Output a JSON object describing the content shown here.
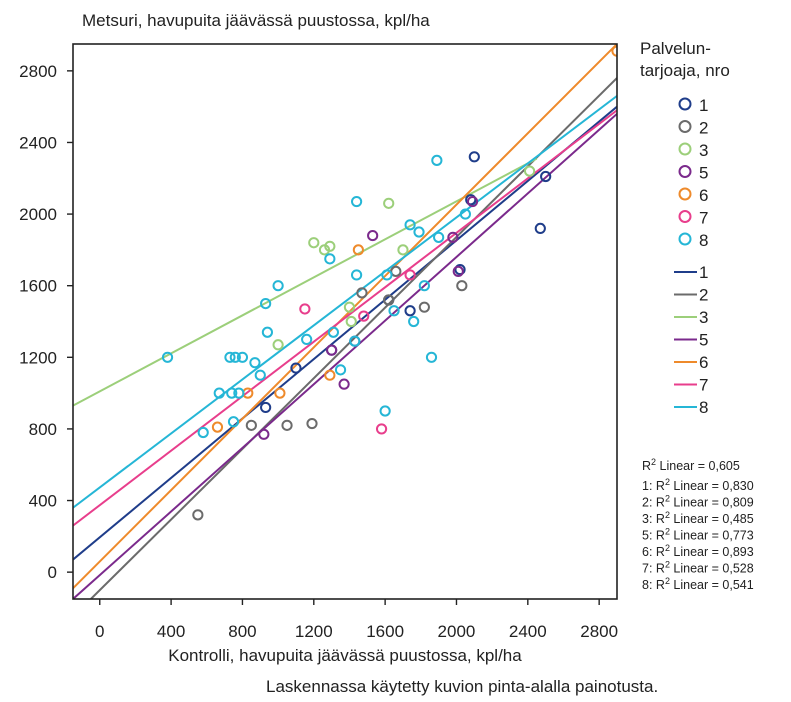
{
  "chart_data": {
    "type": "scatter",
    "title": "Metsuri, havupuita jäävässä puustossa, kpl/ha",
    "xlabel": "Kontrolli, havupuita jäävässä puustossa, kpl/ha",
    "ylabel": "",
    "xlim": [
      -150,
      2900
    ],
    "ylim": [
      -150,
      2950
    ],
    "xticks": [
      0,
      400,
      800,
      1200,
      1600,
      2000,
      2400,
      2800
    ],
    "yticks": [
      0,
      400,
      800,
      1200,
      1600,
      2000,
      2400,
      2800
    ],
    "grid": false,
    "legend_title": "Palvelun-\ntarjoaja, nro",
    "legend_placement": "right",
    "footnote": "Laskennassa käytetty kuvion pinta-alalla painotusta.",
    "r2_total": "R2 Linear = 0,605",
    "series": [
      {
        "name": "1",
        "color": "#1f3d8a",
        "r2": "0,830",
        "fit": [
          [
            -150,
            70
          ],
          [
            2900,
            2600
          ]
        ],
        "points": [
          [
            930,
            920
          ],
          [
            1100,
            1140
          ],
          [
            1300,
            1240
          ],
          [
            1430,
            1290
          ],
          [
            1740,
            1460
          ],
          [
            2020,
            1690
          ],
          [
            2080,
            2080
          ],
          [
            2100,
            2320
          ],
          [
            2470,
            1920
          ],
          [
            2500,
            2210
          ],
          [
            1620,
            1520
          ]
        ]
      },
      {
        "name": "2",
        "color": "#6b6b6b",
        "r2": "0,809",
        "fit": [
          [
            -50,
            -150
          ],
          [
            2900,
            2760
          ]
        ],
        "points": [
          [
            550,
            320
          ],
          [
            850,
            820
          ],
          [
            1050,
            820
          ],
          [
            1190,
            830
          ],
          [
            1470,
            1560
          ],
          [
            1620,
            1520
          ],
          [
            1820,
            1480
          ],
          [
            2030,
            1600
          ],
          [
            1660,
            1680
          ]
        ]
      },
      {
        "name": "3",
        "color": "#9ccf7a",
        "r2": "0,485",
        "fit": [
          [
            -150,
            930
          ],
          [
            2450,
            2310
          ]
        ],
        "points": [
          [
            1000,
            1270
          ],
          [
            1200,
            1840
          ],
          [
            1260,
            1800
          ],
          [
            1290,
            1820
          ],
          [
            1400,
            1480
          ],
          [
            1410,
            1400
          ],
          [
            1620,
            2060
          ],
          [
            1700,
            1800
          ],
          [
            2410,
            2240
          ]
        ]
      },
      {
        "name": "5",
        "color": "#7b2a8c",
        "r2": "0,773",
        "fit": [
          [
            -150,
            -150
          ],
          [
            2900,
            2560
          ]
        ],
        "points": [
          [
            920,
            770
          ],
          [
            1300,
            1240
          ],
          [
            1370,
            1050
          ],
          [
            1530,
            1880
          ],
          [
            1980,
            1870
          ],
          [
            2010,
            1680
          ],
          [
            2090,
            2070
          ]
        ]
      },
      {
        "name": "6",
        "color": "#ee8a2b",
        "r2": "0,893",
        "fit": [
          [
            -150,
            -90
          ],
          [
            2900,
            2950
          ]
        ],
        "points": [
          [
            660,
            810
          ],
          [
            830,
            1000
          ],
          [
            1010,
            1000
          ],
          [
            1290,
            1100
          ],
          [
            1450,
            1800
          ],
          [
            2900,
            2910
          ]
        ]
      },
      {
        "name": "7",
        "color": "#e83e8c",
        "r2": "0,528",
        "fit": [
          [
            -150,
            260
          ],
          [
            2900,
            2580
          ]
        ],
        "points": [
          [
            1150,
            1470
          ],
          [
            1480,
            1430
          ],
          [
            1580,
            800
          ],
          [
            1740,
            1660
          ]
        ]
      },
      {
        "name": "8",
        "color": "#25b6d6",
        "r2": "0,541",
        "fit": [
          [
            -150,
            360
          ],
          [
            2900,
            2660
          ]
        ],
        "points": [
          [
            380,
            1200
          ],
          [
            580,
            780
          ],
          [
            670,
            1000
          ],
          [
            730,
            1200
          ],
          [
            760,
            1200
          ],
          [
            800,
            1200
          ],
          [
            740,
            1000
          ],
          [
            780,
            1000
          ],
          [
            870,
            1170
          ],
          [
            900,
            1100
          ],
          [
            930,
            1500
          ],
          [
            940,
            1340
          ],
          [
            1000,
            1600
          ],
          [
            1160,
            1300
          ],
          [
            1290,
            1750
          ],
          [
            1310,
            1340
          ],
          [
            1350,
            1130
          ],
          [
            1440,
            2070
          ],
          [
            1440,
            1660
          ],
          [
            1600,
            900
          ],
          [
            1610,
            1660
          ],
          [
            1650,
            1460
          ],
          [
            1760,
            1400
          ],
          [
            1790,
            1900
          ],
          [
            1820,
            1600
          ],
          [
            1860,
            1200
          ],
          [
            1890,
            2300
          ],
          [
            1900,
            1870
          ],
          [
            2050,
            2000
          ],
          [
            1740,
            1940
          ],
          [
            750,
            840
          ],
          [
            1430,
            1290
          ]
        ]
      }
    ]
  }
}
